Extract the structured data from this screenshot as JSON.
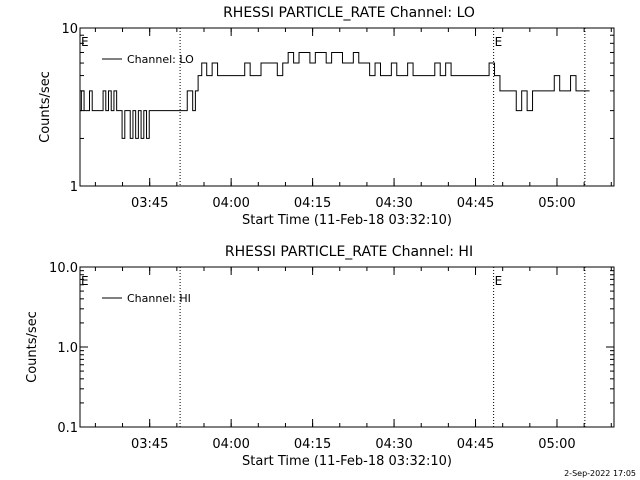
{
  "chart_data": [
    {
      "type": "line",
      "title": "RHESSI PARTICLE_RATE Channel: LO",
      "xlabel": "Start Time (11-Feb-18 03:32:10)",
      "ylabel": "Counts/sec",
      "yscale": "log",
      "ylim": [
        1,
        10
      ],
      "xlim": [
        "03:32:10",
        "05:10:30"
      ],
      "xticks": [
        "03:45",
        "04:00",
        "04:15",
        "04:30",
        "04:45",
        "05:00"
      ],
      "yticks": [
        "1",
        "10"
      ],
      "legend": "top-left",
      "grid": false,
      "series": [
        {
          "name": "Channel: LO",
          "x": [
            "03:32:10",
            "03:32:40",
            "03:33:10",
            "03:33:40",
            "03:34:10",
            "03:34:40",
            "03:35:10",
            "03:35:40",
            "03:36:10",
            "03:36:40",
            "03:37:10",
            "03:37:40",
            "03:38:10",
            "03:38:40",
            "03:39:10",
            "03:39:40",
            "03:40:10",
            "03:40:40",
            "03:41:10",
            "03:41:40",
            "03:42:10",
            "03:42:40",
            "03:43:10",
            "03:43:40",
            "03:44:10",
            "03:44:40",
            "03:45:10",
            "03:45:40",
            "03:46:10",
            "03:46:40",
            "03:47:10",
            "03:47:40",
            "03:48:10",
            "03:48:40",
            "03:49:10",
            "03:49:40",
            "03:50:10",
            "03:50:40",
            "03:51:10",
            "03:51:40",
            "03:52:10",
            "03:52:40",
            "03:53:10",
            "03:53:40",
            "03:54:10",
            "03:55:00",
            "03:56:00",
            "03:57:00",
            "03:58:00",
            "03:59:00",
            "04:00:00",
            "04:01:00",
            "04:02:00",
            "04:03:00",
            "04:04:00",
            "04:05:00",
            "04:06:00",
            "04:07:00",
            "04:08:00",
            "04:09:00",
            "04:10:00",
            "04:11:00",
            "04:12:00",
            "04:13:00",
            "04:14:00",
            "04:15:00",
            "04:16:00",
            "04:17:00",
            "04:18:00",
            "04:19:00",
            "04:20:00",
            "04:21:00",
            "04:22:00",
            "04:23:00",
            "04:24:00",
            "04:25:00",
            "04:26:00",
            "04:27:00",
            "04:28:00",
            "04:29:00",
            "04:30:00",
            "04:31:00",
            "04:32:00",
            "04:33:00",
            "04:34:00",
            "04:35:00",
            "04:36:00",
            "04:37:00",
            "04:38:00",
            "04:39:00",
            "04:40:00",
            "04:41:00",
            "04:42:00",
            "04:43:00",
            "04:44:00",
            "04:45:00",
            "04:46:00",
            "04:47:00",
            "04:48:00",
            "04:49:00",
            "04:50:00",
            "04:51:00",
            "04:52:00",
            "04:53:00",
            "04:54:00",
            "04:55:00",
            "04:56:00",
            "04:57:00",
            "04:58:00",
            "04:59:00",
            "05:00:00",
            "05:01:00",
            "05:02:00",
            "05:03:00",
            "05:04:00",
            "05:05:00",
            "05:06:00"
          ],
          "values": [
            3,
            4,
            3,
            3,
            4,
            3,
            3,
            3,
            3,
            4,
            3,
            4,
            3,
            4,
            3,
            3,
            2,
            3,
            3,
            2,
            3,
            2,
            3,
            2,
            3,
            2,
            3,
            3,
            3,
            3,
            3,
            3,
            3,
            3,
            3,
            3,
            3,
            3,
            3,
            3,
            4,
            4,
            3,
            4,
            5,
            6,
            5,
            6,
            5,
            5,
            5,
            5,
            5,
            6,
            5,
            5,
            6,
            6,
            6,
            5,
            6,
            7,
            6,
            7,
            7,
            6,
            7,
            7,
            6,
            7,
            7,
            6,
            6,
            7,
            6,
            6,
            5,
            6,
            5,
            5,
            6,
            5,
            5,
            6,
            5,
            5,
            5,
            5,
            6,
            5,
            6,
            5,
            5,
            5,
            5,
            5,
            5,
            5,
            6,
            5,
            4,
            4,
            4,
            3,
            4,
            3,
            4,
            4,
            4,
            4,
            5,
            4,
            4,
            5,
            4,
            4,
            4
          ]
        }
      ],
      "vertical_markers": [
        "03:50:36",
        "04:48:20",
        "05:05:08"
      ],
      "marker_labels": [
        "E",
        "E"
      ]
    },
    {
      "type": "line",
      "title": "RHESSI PARTICLE_RATE Channel: HI",
      "xlabel": "Start Time (11-Feb-18 03:32:10)",
      "ylabel": "Counts/sec",
      "yscale": "log",
      "ylim": [
        0.1,
        10.0
      ],
      "xlim": [
        "03:32:10",
        "05:10:30"
      ],
      "xticks": [
        "03:45",
        "04:00",
        "04:15",
        "04:30",
        "04:45",
        "05:00"
      ],
      "yticks": [
        "0.1",
        "1.0",
        "10.0"
      ],
      "legend": "top-left",
      "grid": false,
      "series": [
        {
          "name": "Channel: HI",
          "x": [],
          "values": []
        }
      ],
      "vertical_markers": [
        "03:50:36",
        "04:48:20",
        "05:05:08"
      ],
      "marker_labels": [
        "E",
        "E"
      ]
    }
  ],
  "footer": {
    "timestamp": "2-Sep-2022 17:05"
  }
}
